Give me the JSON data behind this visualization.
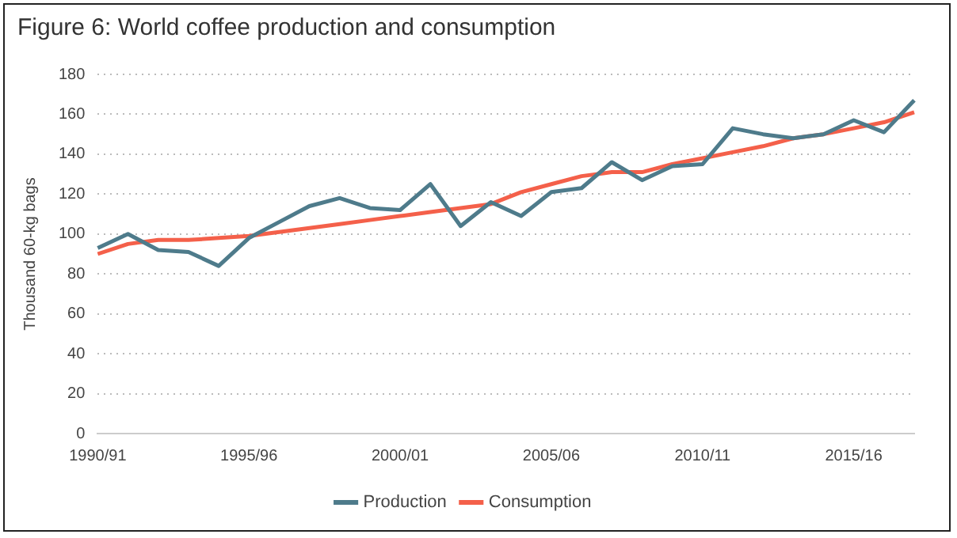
{
  "chart_data": {
    "type": "line",
    "title": "Figure 6: World coffee production and consumption",
    "ylabel": "Thousand 60-kg bags",
    "categories": [
      "1990/91",
      null,
      null,
      null,
      null,
      "1995/96",
      null,
      null,
      null,
      null,
      "2000/01",
      null,
      null,
      null,
      null,
      "2005/06",
      null,
      null,
      null,
      null,
      "2010/11",
      null,
      null,
      null,
      null,
      "2015/16",
      null,
      null
    ],
    "series": [
      {
        "name": "Production",
        "color": "#4e7b8b",
        "values": [
          93,
          100,
          92,
          91,
          84,
          98,
          106,
          114,
          118,
          113,
          112,
          125,
          104,
          116,
          109,
          121,
          123,
          136,
          127,
          134,
          135,
          153,
          150,
          148,
          150,
          157,
          151,
          167
        ]
      },
      {
        "name": "Consumption",
        "color": "#f4604a",
        "values": [
          90,
          95,
          97,
          97,
          98,
          99,
          101,
          103,
          105,
          107,
          109,
          111,
          113,
          115,
          121,
          125,
          129,
          131,
          131,
          135,
          138,
          141,
          144,
          148,
          150,
          153,
          156,
          161
        ]
      }
    ],
    "ylim": [
      0,
      180
    ],
    "yticks": [
      0,
      20,
      40,
      60,
      80,
      100,
      120,
      140,
      160,
      180
    ],
    "grid": "y",
    "legend": "bottom",
    "marker": "none",
    "line_style": "solid"
  }
}
